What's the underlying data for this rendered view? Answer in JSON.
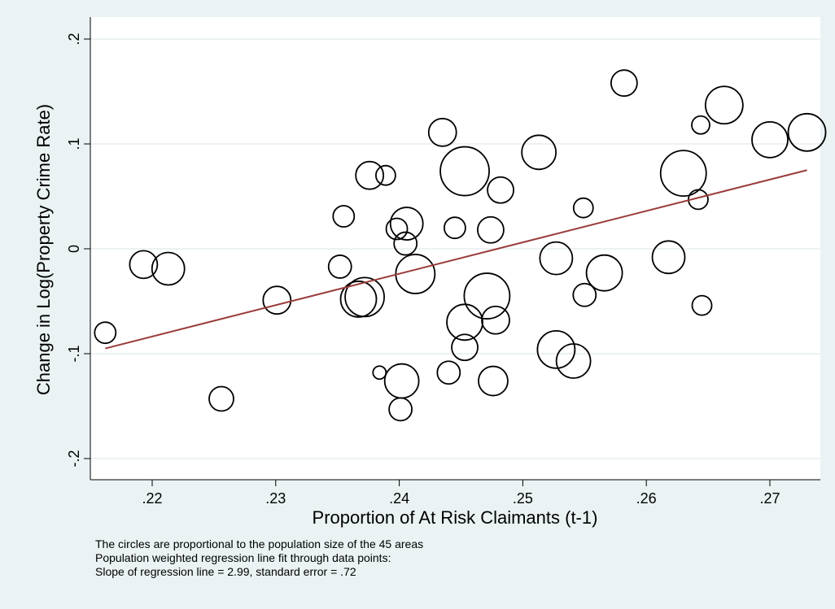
{
  "chart_data": {
    "type": "scatter",
    "title": "",
    "xlabel": "Proportion of At Risk Claimants (t-1)",
    "ylabel": "Change in Log(Property Crime Rate)",
    "xlim": [
      0.216,
      0.273
    ],
    "ylim": [
      -0.2,
      0.2
    ],
    "x_ticks": [
      ".22",
      ".23",
      ".24",
      ".25",
      ".26",
      ".27"
    ],
    "y_ticks": [
      "-.2",
      "-.1",
      "0",
      ".1",
      ".2"
    ],
    "grid": true,
    "marker": "hollow circle, area proportional to population",
    "colors": {
      "markers": "#000000",
      "fit_line": "#9b3b3b",
      "plot_bg": "#ffffff",
      "outer_bg": "#eaf2f3",
      "grid": "#e6eef0"
    },
    "fit_line": {
      "slope": 2.99,
      "standard_error": 0.72,
      "x": [
        0.2162,
        0.273
      ],
      "y": [
        -0.095,
        0.075
      ]
    },
    "points": [
      {
        "x": 0.2162,
        "y": -0.08,
        "size": 13
      },
      {
        "x": 0.2193,
        "y": -0.015,
        "size": 17
      },
      {
        "x": 0.2213,
        "y": -0.019,
        "size": 20
      },
      {
        "x": 0.2256,
        "y": -0.143,
        "size": 15
      },
      {
        "x": 0.2301,
        "y": -0.049,
        "size": 17
      },
      {
        "x": 0.2352,
        "y": -0.017,
        "size": 14
      },
      {
        "x": 0.2355,
        "y": 0.031,
        "size": 13
      },
      {
        "x": 0.2367,
        "y": -0.048,
        "size": 22
      },
      {
        "x": 0.2372,
        "y": -0.046,
        "size": 24
      },
      {
        "x": 0.2376,
        "y": 0.07,
        "size": 17
      },
      {
        "x": 0.2389,
        "y": 0.07,
        "size": 12
      },
      {
        "x": 0.2384,
        "y": -0.118,
        "size": 8
      },
      {
        "x": 0.2398,
        "y": 0.019,
        "size": 13
      },
      {
        "x": 0.2406,
        "y": 0.024,
        "size": 20
      },
      {
        "x": 0.2405,
        "y": 0.005,
        "size": 14
      },
      {
        "x": 0.2413,
        "y": -0.024,
        "size": 24
      },
      {
        "x": 0.2402,
        "y": -0.126,
        "size": 21
      },
      {
        "x": 0.2401,
        "y": -0.153,
        "size": 14
      },
      {
        "x": 0.2435,
        "y": 0.111,
        "size": 17
      },
      {
        "x": 0.2445,
        "y": 0.02,
        "size": 13
      },
      {
        "x": 0.244,
        "y": -0.118,
        "size": 14
      },
      {
        "x": 0.2453,
        "y": 0.074,
        "size": 30
      },
      {
        "x": 0.2453,
        "y": -0.07,
        "size": 22
      },
      {
        "x": 0.2453,
        "y": -0.094,
        "size": 16
      },
      {
        "x": 0.2474,
        "y": 0.018,
        "size": 16
      },
      {
        "x": 0.2471,
        "y": -0.045,
        "size": 28
      },
      {
        "x": 0.2478,
        "y": -0.068,
        "size": 17
      },
      {
        "x": 0.2476,
        "y": -0.126,
        "size": 18
      },
      {
        "x": 0.2482,
        "y": 0.056,
        "size": 16
      },
      {
        "x": 0.2513,
        "y": 0.092,
        "size": 21
      },
      {
        "x": 0.2527,
        "y": -0.009,
        "size": 20
      },
      {
        "x": 0.2527,
        "y": -0.096,
        "size": 23
      },
      {
        "x": 0.2541,
        "y": -0.107,
        "size": 21
      },
      {
        "x": 0.2549,
        "y": 0.039,
        "size": 12
      },
      {
        "x": 0.255,
        "y": -0.044,
        "size": 14
      },
      {
        "x": 0.2566,
        "y": -0.023,
        "size": 22
      },
      {
        "x": 0.2582,
        "y": 0.158,
        "size": 16
      },
      {
        "x": 0.2618,
        "y": -0.008,
        "size": 20
      },
      {
        "x": 0.263,
        "y": 0.072,
        "size": 28
      },
      {
        "x": 0.2642,
        "y": 0.047,
        "size": 12
      },
      {
        "x": 0.2644,
        "y": 0.118,
        "size": 11
      },
      {
        "x": 0.2645,
        "y": -0.054,
        "size": 12
      },
      {
        "x": 0.2663,
        "y": 0.137,
        "size": 23
      },
      {
        "x": 0.27,
        "y": 0.104,
        "size": 22
      },
      {
        "x": 0.273,
        "y": 0.111,
        "size": 23
      }
    ]
  },
  "notes": {
    "line1": "The circles are proportional to the population size of the 45 areas",
    "line2": "Population weighted regression line fit through data points:",
    "line3": "Slope of regression line = 2.99, standard error = .72"
  }
}
